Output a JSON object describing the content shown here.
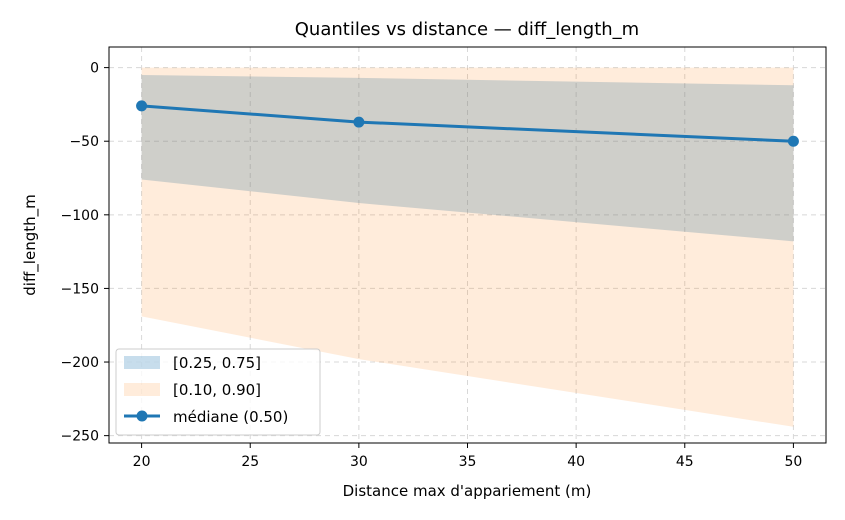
{
  "chart_data": {
    "type": "line",
    "title": "Quantiles vs distance — diff_length_m",
    "xlabel": "Distance max d'appariement (m)",
    "ylabel": "diff_length_m",
    "xlim": [
      18.5,
      51.5
    ],
    "ylim": [
      -255,
      14
    ],
    "xticks": [
      20,
      25,
      30,
      35,
      40,
      45,
      50
    ],
    "yticks": [
      0,
      -50,
      -100,
      -150,
      -200,
      -250
    ],
    "ytick_labels": [
      "0",
      "−50",
      "−100",
      "−150",
      "−200",
      "−250"
    ],
    "x": [
      20,
      30,
      50
    ],
    "grid": true,
    "legend_position": "lower-left",
    "series": [
      {
        "name": "[0.25, 0.75]",
        "kind": "band",
        "lower": [
          -76,
          -92,
          -118
        ],
        "upper": [
          -5,
          -7,
          -12
        ],
        "color": "#1f77b4",
        "opacity": 0.25
      },
      {
        "name": "[0.10, 0.90]",
        "kind": "band",
        "lower": [
          -169,
          -198,
          -244
        ],
        "upper": [
          0,
          0,
          0
        ],
        "color": "#ff7f0e",
        "opacity": 0.15
      },
      {
        "name": "médiane (0.50)",
        "kind": "line",
        "values": [
          -26,
          -37,
          -50
        ],
        "color": "#1f77b4"
      }
    ]
  }
}
